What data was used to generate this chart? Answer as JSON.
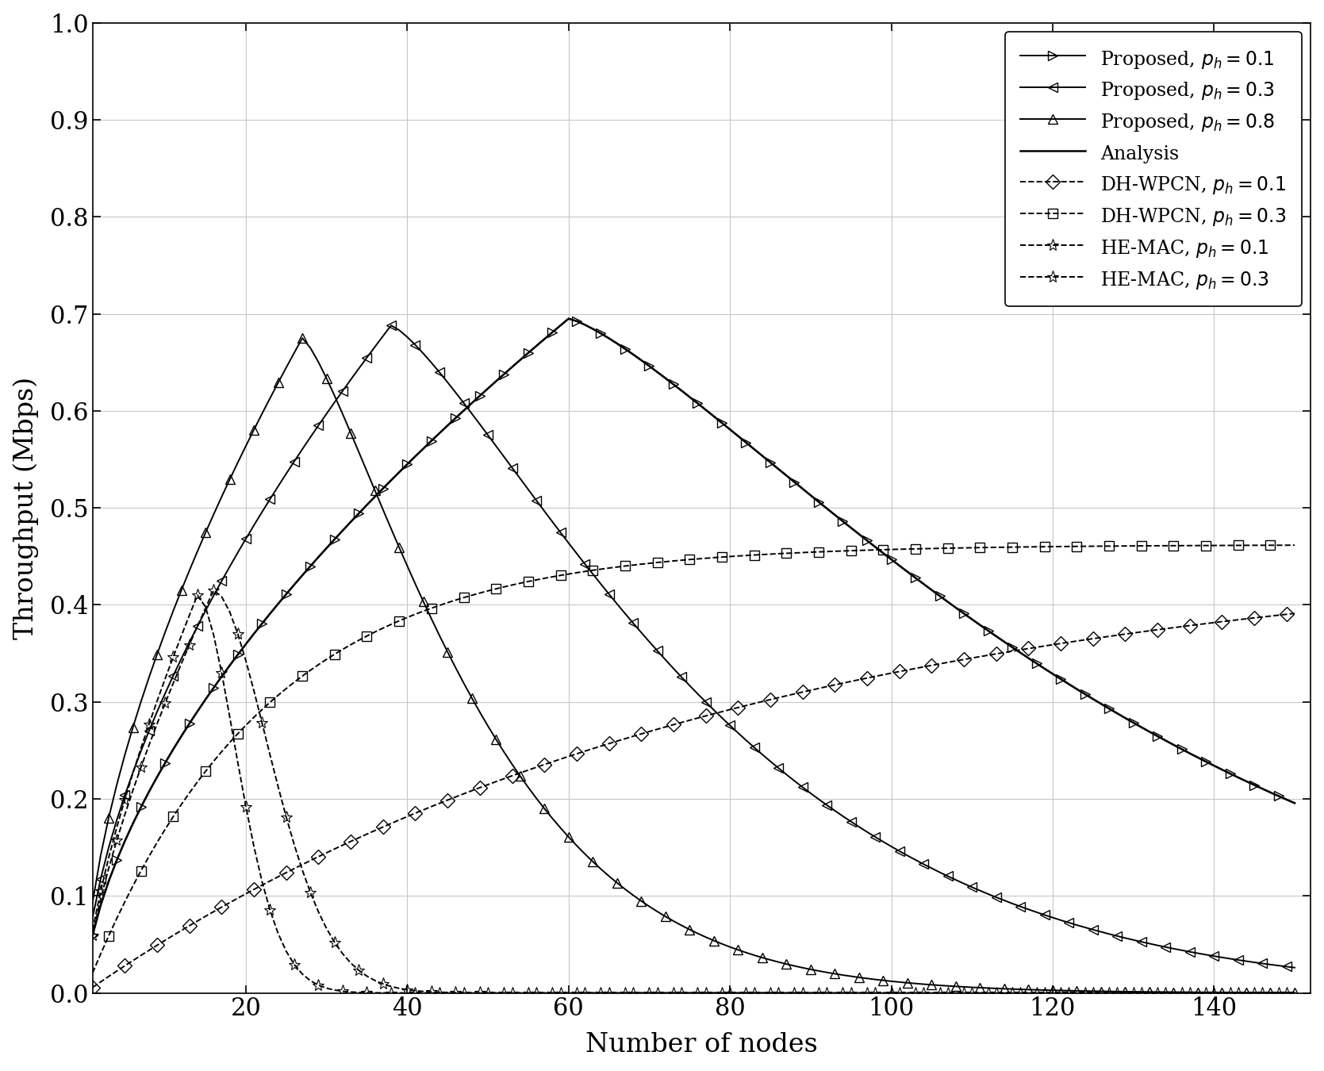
{
  "xlabel": "Number of nodes",
  "ylabel": "Throughput (Mbps)",
  "xlim": [
    1,
    152
  ],
  "ylim": [
    0,
    1
  ],
  "xticks": [
    20,
    40,
    60,
    80,
    100,
    120,
    140
  ],
  "yticks": [
    0,
    0.1,
    0.2,
    0.3,
    0.4,
    0.5,
    0.6,
    0.7,
    0.8,
    0.9,
    1
  ],
  "legend_loc": "upper right",
  "grid_color": "#c8c8c8",
  "bg_color": "#ffffff",
  "prop01_peak_n": 60,
  "prop01_peak_val": 0.695,
  "prop03_peak_n": 38,
  "prop03_peak_val": 0.688,
  "prop08_peak_n": 27,
  "prop08_peak_val": 0.675,
  "dh01_plateau": 0.462,
  "dh01_rise_rate": 80,
  "dh03_plateau": 0.462,
  "dh03_rise_rate": 22,
  "he01_peak_n": 16,
  "he01_peak_val": 0.415,
  "he01_decay": 10,
  "he03_peak_n": 14,
  "he03_peak_val": 0.41,
  "he03_decay": 7
}
